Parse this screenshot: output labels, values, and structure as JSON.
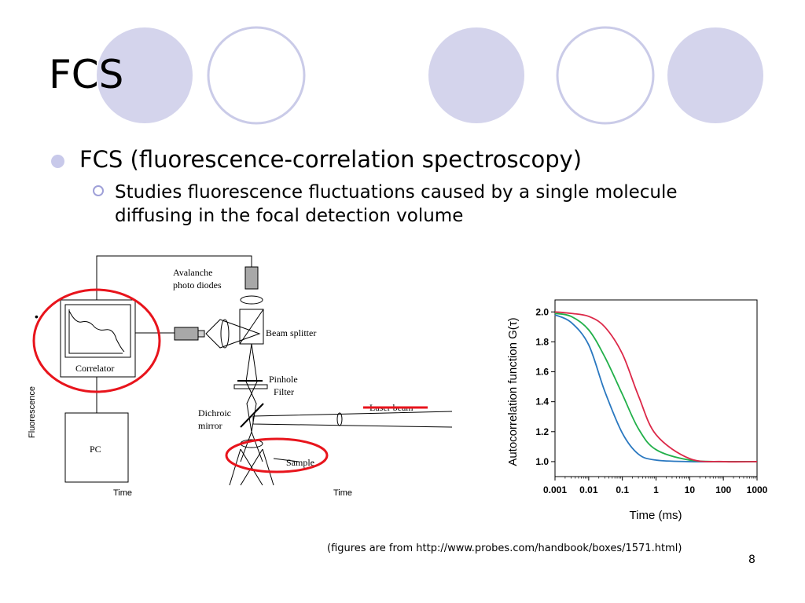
{
  "slide": {
    "title": "FCS",
    "bullet_level1": "FCS (fluorescence-correlation spectroscopy)",
    "bullet_level2": "Studies fluorescence fluctuations caused by a single molecule diffusing in the focal detection volume",
    "caption": "(figures are from http://www.probes.com/handbook/boxes/1571.html)",
    "page_number": "8"
  },
  "colors": {
    "decor_circle_fill": "#d4d4ec",
    "decor_circle_stroke": "#cacbe8",
    "highlight_red": "#e8141c",
    "curve_blue": "#2a78c0",
    "curve_green": "#22b04a",
    "curve_red": "#dc2848"
  },
  "setup_diagram": {
    "labels": {
      "avalanche_line1": "Avalanche",
      "avalanche_line2": "photo diodes",
      "beam_splitter": "Beam splitter",
      "pinhole": "Pinhole",
      "filter": "Filter",
      "dichroic_line1": "Dichroic",
      "dichroic_line2": "mirror",
      "laser_beam": "Laser beam",
      "sample": "Sample",
      "correlator": "Correlator",
      "pc": "PC",
      "fluorescence": "Fluorescence",
      "time_left": "Time",
      "time_right": "Time"
    }
  },
  "chart_data": {
    "type": "line",
    "xlabel": "Time (ms)",
    "ylabel": "Autocorrelation function G(τ)",
    "x_scale": "log",
    "xlim": [
      0.001,
      1000
    ],
    "ylim": [
      0.9,
      2.08
    ],
    "x_ticks": [
      "0.001",
      "0.01",
      "0.1",
      "1",
      "10",
      "100",
      "1000"
    ],
    "y_ticks": [
      "1.0",
      "1.2",
      "1.4",
      "1.6",
      "1.8",
      "2.0"
    ],
    "legend": "none",
    "grid": false,
    "series": [
      {
        "color": "#2a78c0",
        "x": [
          0.001,
          0.003,
          0.01,
          0.03,
          0.1,
          0.3,
          1,
          10,
          100,
          1000
        ],
        "values": [
          1.98,
          1.93,
          1.78,
          1.47,
          1.19,
          1.05,
          1.01,
          1.0,
          1.0,
          1.0
        ]
      },
      {
        "color": "#22b04a",
        "x": [
          0.001,
          0.003,
          0.01,
          0.03,
          0.1,
          0.3,
          1,
          10,
          100,
          1000
        ],
        "values": [
          1.99,
          1.97,
          1.88,
          1.7,
          1.45,
          1.22,
          1.08,
          1.01,
          1.0,
          1.0
        ]
      },
      {
        "color": "#dc2848",
        "x": [
          0.001,
          0.003,
          0.01,
          0.03,
          0.1,
          0.3,
          1,
          10,
          100,
          1000
        ],
        "values": [
          2.0,
          1.99,
          1.97,
          1.9,
          1.72,
          1.44,
          1.18,
          1.02,
          1.0,
          1.0
        ]
      }
    ]
  }
}
